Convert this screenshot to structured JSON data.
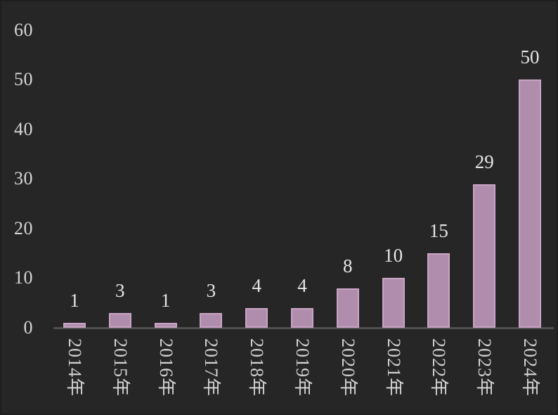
{
  "chart_data": {
    "type": "bar",
    "title": "",
    "xlabel": "",
    "ylabel": "",
    "categories": [
      "2014年",
      "2015年",
      "2016年",
      "2017年",
      "2018年",
      "2019年",
      "2020年",
      "2021年",
      "2022年",
      "2023年",
      "2024年"
    ],
    "values": [
      1,
      3,
      1,
      3,
      4,
      4,
      8,
      10,
      15,
      29,
      50
    ],
    "data_labels": [
      "1",
      "3",
      "1",
      "3",
      "4",
      "4",
      "8",
      "10",
      "15",
      "29",
      "50"
    ],
    "ylim": [
      0,
      60
    ],
    "yticks": [
      0,
      10,
      20,
      30,
      40,
      50,
      60
    ],
    "grid": false,
    "legend_position": "none",
    "x_label_rotation_deg": 90,
    "colors": {
      "background": "#262626",
      "bar_fill": "#b18dad",
      "bar_border": "#c9a5c5",
      "axis_line": "#4f4f4f",
      "tick_text": "#d6d6d6",
      "data_label_text": "#e6e6e6",
      "category_text": "#d2d2d2"
    }
  }
}
